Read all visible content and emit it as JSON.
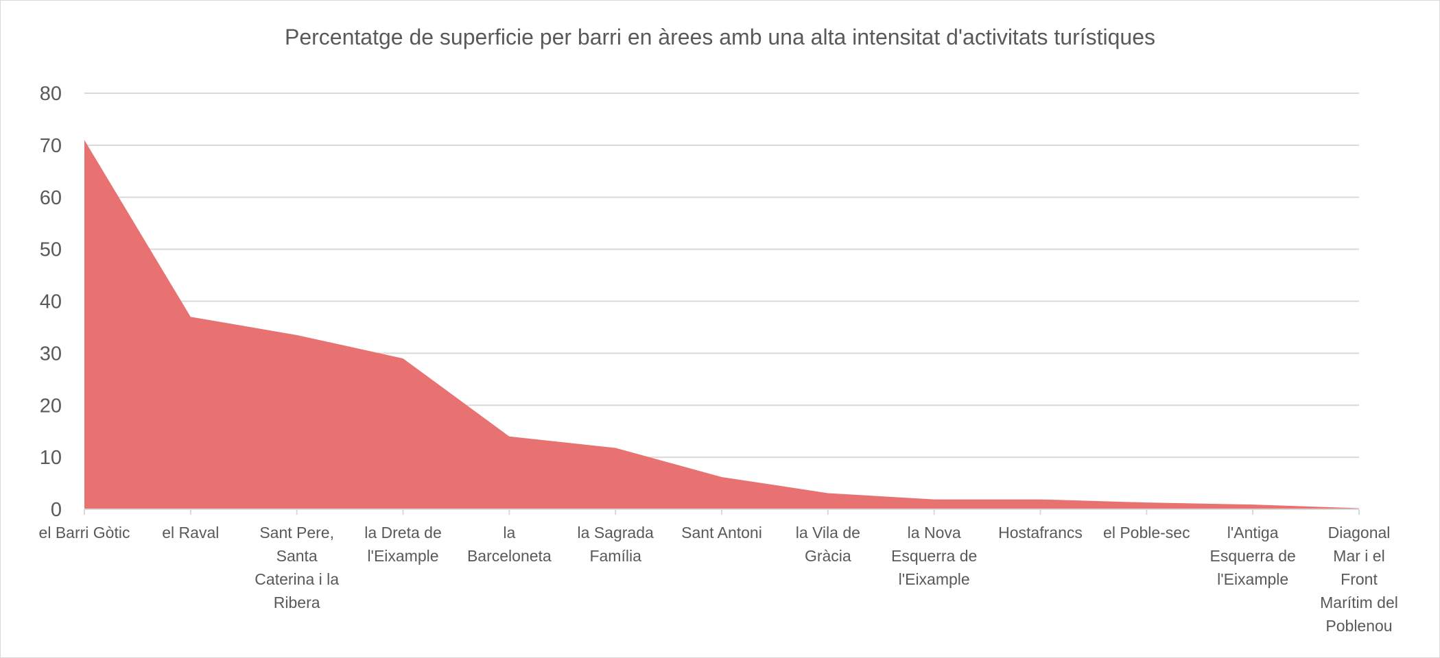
{
  "chart_data": {
    "type": "area",
    "title": "Percentatge de superficie per barri en àrees amb una alta intensitat d'activitats turístiques",
    "xlabel": "",
    "ylabel": "",
    "ylim": [
      0,
      80
    ],
    "yticks": [
      0,
      10,
      20,
      30,
      40,
      50,
      60,
      70,
      80
    ],
    "grid": true,
    "legend": "none",
    "color": "#e87171",
    "categories": [
      "el Barri Gòtic",
      "el Raval",
      "Sant Pere, Santa Caterina i la Ribera",
      "la Dreta de l'Eixample",
      "la Barceloneta",
      "la Sagrada Família",
      "Sant Antoni",
      "la Vila de Gràcia",
      "la Nova Esquerra de l'Eixample",
      "Hostafrancs",
      "el Poble-sec",
      "l'Antiga Esquerra de l'Eixample",
      "Diagonal Mar i el Front Marítim del Poblenou"
    ],
    "category_lines": [
      [
        "el Barri Gòtic"
      ],
      [
        "el Raval"
      ],
      [
        "Sant Pere,",
        "Santa",
        "Caterina i la",
        "Ribera"
      ],
      [
        "la Dreta de",
        "l'Eixample"
      ],
      [
        "la",
        "Barceloneta"
      ],
      [
        "la Sagrada",
        "Família"
      ],
      [
        "Sant Antoni"
      ],
      [
        "la Vila de",
        "Gràcia"
      ],
      [
        "la Nova",
        "Esquerra de",
        "l'Eixample"
      ],
      [
        "Hostafrancs"
      ],
      [
        "el Poble-sec"
      ],
      [
        "l'Antiga",
        "Esquerra de",
        "l'Eixample"
      ],
      [
        "Diagonal",
        "Mar i el",
        "Front",
        "Marítim del",
        "Poblenou"
      ]
    ],
    "values": [
      71,
      37,
      33.5,
      29,
      14,
      11.8,
      6.2,
      3.1,
      1.9,
      1.9,
      1.3,
      0.9,
      0.2
    ]
  }
}
